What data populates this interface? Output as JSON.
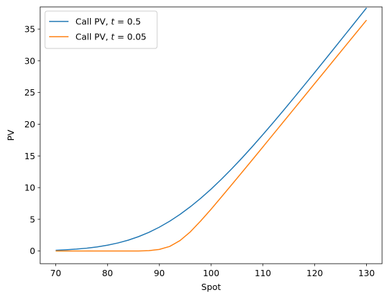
{
  "chart_data": {
    "type": "line",
    "title": "",
    "xlabel": "Spot",
    "ylabel": "PV",
    "xlim": [
      67,
      133
    ],
    "ylim": [
      -2,
      38.5
    ],
    "xticks": [
      70,
      80,
      90,
      100,
      110,
      120,
      130
    ],
    "yticks": [
      0,
      5,
      10,
      15,
      20,
      25,
      30,
      35
    ],
    "grid": false,
    "legend_position": "top-left",
    "x": [
      70,
      72,
      74,
      76,
      78,
      80,
      82,
      84,
      86,
      88,
      90,
      92,
      94,
      96,
      98,
      100,
      102,
      104,
      106,
      108,
      110,
      112,
      114,
      116,
      118,
      120,
      122,
      124,
      126,
      128,
      130
    ],
    "series": [
      {
        "name": "Call PV, t = 0.5",
        "label_prefix": "Call PV, ",
        "label_var": "t",
        "label_value": " = 0.5",
        "color": "#1f77b4",
        "values": [
          0.12,
          0.2,
          0.3,
          0.45,
          0.65,
          0.92,
          1.27,
          1.71,
          2.27,
          2.95,
          3.76,
          4.7,
          5.78,
          6.99,
          8.32,
          9.77,
          11.33,
          12.98,
          14.71,
          16.51,
          18.37,
          20.27,
          22.21,
          24.18,
          26.17,
          28.17,
          30.19,
          32.22,
          34.26,
          36.3,
          38.35
        ]
      },
      {
        "name": "Call PV, t = 0.05",
        "label_prefix": "Call PV, ",
        "label_var": "t",
        "label_value": " = 0.05",
        "color": "#ff7f0e",
        "values": [
          0,
          0,
          0,
          0,
          0,
          0,
          0,
          0,
          0.01,
          0.06,
          0.25,
          0.72,
          1.65,
          3.03,
          4.75,
          6.6,
          8.53,
          10.49,
          12.45,
          14.43,
          16.42,
          18.42,
          20.42,
          22.42,
          24.42,
          26.42,
          28.42,
          30.42,
          32.42,
          34.42,
          36.42
        ]
      }
    ]
  }
}
